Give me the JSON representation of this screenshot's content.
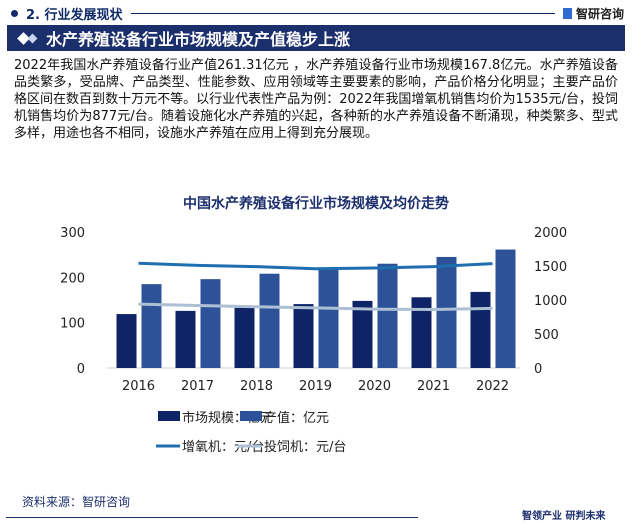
{
  "section": {
    "title": "2. 行业发展现状",
    "logo": "智研咨询"
  },
  "banner": {
    "title": "水产养殖设备行业市场规模及产值稳步上涨"
  },
  "body_text": "2022年我国水产养殖设备行业产值261.31亿元 ，水产养殖设备行业市场规模167.8亿元。水产养殖设备品类繁多，受品牌、产品类型、性能参数、应用领域等主要要素的影响，产品价格分化明显；主要产品价格区间在数百到数十万元不等。以行业代表性产品为例：2022年我国增氧机销售均价为1535元/台，投饲机销售均价为877元/台。随着设施化水产养殖的兴起，各种新的水产养殖设备不断涌现，种类繁多、型式多样，用途也各不相同，设施水产养殖在应用上得到充分展现。",
  "chart_data": {
    "type": "bar",
    "title": "中国水产养殖设备行业市场规模及均价走势",
    "categories": [
      "2016",
      "2017",
      "2018",
      "2019",
      "2020",
      "2021",
      "2022"
    ],
    "ylim_left": [
      0,
      300
    ],
    "yticks_left": [
      "0",
      "100",
      "200",
      "300"
    ],
    "ylim_right": [
      0,
      2000
    ],
    "yticks_right": [
      "0",
      "500",
      "1000",
      "1500",
      "2000"
    ],
    "series": [
      {
        "name": "市场规模：亿元",
        "type": "bar",
        "axis": "left",
        "color": "#0f2466",
        "values": [
          119,
          126,
          133,
          141,
          148,
          156,
          167.8
        ]
      },
      {
        "name": "产值：亿元",
        "type": "bar",
        "axis": "left",
        "color": "#2e5298",
        "values": [
          185,
          196,
          208,
          219,
          230,
          245,
          261.31
        ]
      },
      {
        "name": "增氧机：元/台",
        "type": "line",
        "axis": "right",
        "color": "#1f6fb0",
        "values": [
          1540,
          1510,
          1490,
          1460,
          1470,
          1490,
          1535
        ]
      },
      {
        "name": "投饲机：元/台",
        "type": "line",
        "axis": "right",
        "color": "#adbfd2",
        "values": [
          940,
          920,
          900,
          885,
          865,
          860,
          877
        ]
      }
    ],
    "grid": false,
    "legend": "bottom"
  },
  "source": "资料来源：智研咨询",
  "slogan": "智领产业 研判未来"
}
